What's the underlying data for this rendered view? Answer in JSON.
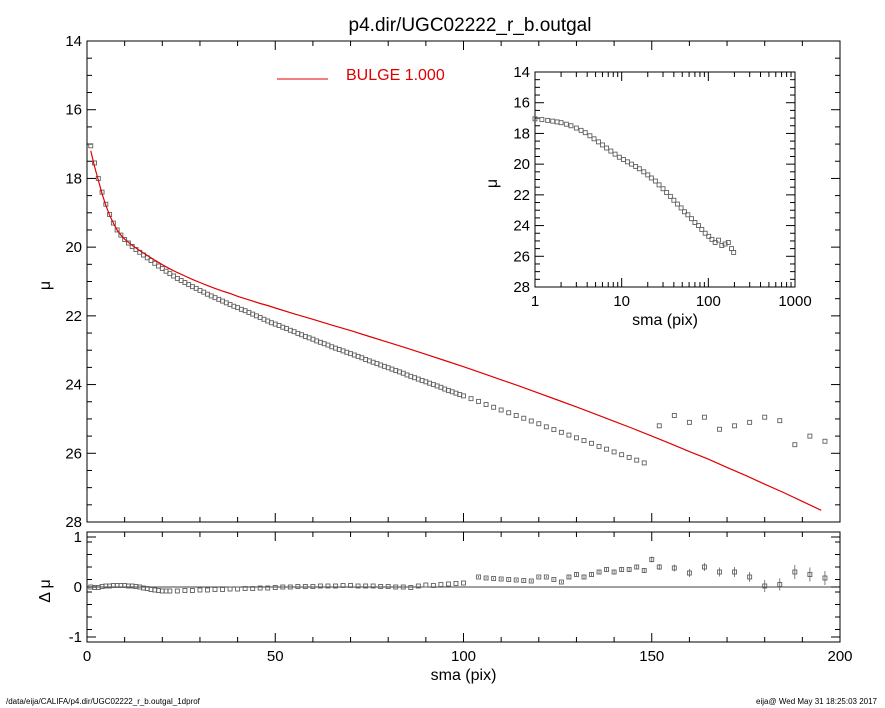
{
  "footer": {
    "left": "/data/eija/CALIFA/p4.dir/UGC02222_r_b.outgal_1dprof",
    "right": "eija@  Wed May 31 18:25:03 2017"
  },
  "colors": {
    "model": "#e00000",
    "data": "#606060",
    "axes": "#000000"
  },
  "chart_data": [
    {
      "id": "main",
      "type": "scatter",
      "title": "p4.dir/UGC02222_r_b.outgal",
      "xlabel": "",
      "ylabel": "μ",
      "xlim": [
        0,
        200
      ],
      "ylim": [
        28,
        14
      ],
      "y_inverted": true,
      "xticks": [
        0,
        50,
        100,
        150,
        200
      ],
      "yticks": [
        14,
        16,
        18,
        20,
        22,
        24,
        26,
        28
      ],
      "legend": {
        "label": "BULGE  1.000",
        "placement": "top-left"
      },
      "series": [
        {
          "name": "data",
          "style": "square-markers",
          "x": [
            1,
            2,
            3,
            4,
            5,
            6,
            7,
            8,
            9,
            10,
            11,
            12,
            13,
            14,
            15,
            16,
            17,
            18,
            19,
            20,
            21,
            22,
            23,
            24,
            25,
            26,
            27,
            28,
            29,
            30,
            31,
            32,
            33,
            34,
            35,
            36,
            37,
            38,
            39,
            40,
            41,
            42,
            43,
            44,
            45,
            46,
            47,
            48,
            49,
            50,
            51,
            52,
            53,
            54,
            55,
            56,
            57,
            58,
            59,
            60,
            61,
            62,
            63,
            64,
            65,
            66,
            67,
            68,
            69,
            70,
            71,
            72,
            73,
            74,
            75,
            76,
            77,
            78,
            79,
            80,
            81,
            82,
            83,
            84,
            85,
            86,
            87,
            88,
            89,
            90,
            91,
            92,
            93,
            94,
            95,
            96,
            97,
            98,
            99,
            100,
            102,
            104,
            106,
            108,
            110,
            112,
            114,
            116,
            118,
            120,
            122,
            124,
            126,
            128,
            130,
            132,
            134,
            136,
            138,
            140,
            142,
            144,
            146,
            148,
            152,
            156,
            160,
            164,
            168,
            172,
            176,
            180,
            184,
            188,
            192,
            196
          ],
          "y": [
            17.05,
            17.55,
            18.0,
            18.4,
            18.75,
            19.05,
            19.3,
            19.5,
            19.65,
            19.78,
            19.88,
            19.98,
            20.07,
            20.15,
            20.23,
            20.31,
            20.39,
            20.47,
            20.55,
            20.62,
            20.7,
            20.77,
            20.84,
            20.91,
            20.97,
            21.03,
            21.09,
            21.15,
            21.2,
            21.26,
            21.31,
            21.37,
            21.42,
            21.47,
            21.52,
            21.57,
            21.62,
            21.67,
            21.72,
            21.76,
            21.81,
            21.85,
            21.9,
            21.95,
            22.0,
            22.05,
            22.1,
            22.15,
            22.2,
            22.24,
            22.28,
            22.33,
            22.37,
            22.42,
            22.46,
            22.51,
            22.55,
            22.6,
            22.64,
            22.68,
            22.73,
            22.77,
            22.81,
            22.85,
            22.9,
            22.94,
            22.98,
            23.02,
            23.06,
            23.1,
            23.14,
            23.18,
            23.22,
            23.27,
            23.31,
            23.35,
            23.39,
            23.43,
            23.47,
            23.51,
            23.55,
            23.59,
            23.63,
            23.67,
            23.72,
            23.76,
            23.8,
            23.84,
            23.88,
            23.92,
            23.96,
            24.0,
            24.04,
            24.08,
            24.13,
            24.17,
            24.21,
            24.25,
            24.29,
            24.33,
            24.41,
            24.49,
            24.58,
            24.66,
            24.74,
            24.82,
            24.9,
            24.98,
            25.06,
            25.14,
            25.23,
            25.31,
            25.39,
            25.47,
            25.55,
            25.63,
            25.71,
            25.8,
            25.88,
            25.96,
            26.04,
            26.12,
            26.2,
            26.28,
            25.2,
            24.9,
            25.1,
            24.95,
            25.3,
            25.2,
            25.1,
            24.95,
            25.05,
            25.75,
            25.5,
            25.65
          ]
        },
        {
          "name": "BULGE  1.000",
          "style": "line",
          "x": [
            1,
            2,
            3,
            4,
            5,
            6,
            7,
            8,
            9,
            10,
            12,
            14,
            16,
            18,
            20,
            22,
            24,
            26,
            28,
            30,
            32,
            34,
            36,
            38,
            40,
            42,
            44,
            46,
            48,
            50,
            55,
            60,
            65,
            70,
            75,
            80,
            85,
            90,
            95,
            100,
            105,
            110,
            115,
            120,
            125,
            130,
            135,
            140,
            145,
            150,
            155,
            160,
            165,
            170,
            175,
            180,
            185,
            190,
            195
          ],
          "y": [
            17.2,
            17.65,
            18.05,
            18.45,
            18.78,
            19.07,
            19.3,
            19.5,
            19.65,
            19.77,
            19.95,
            20.1,
            20.24,
            20.38,
            20.51,
            20.63,
            20.74,
            20.84,
            20.94,
            21.03,
            21.12,
            21.2,
            21.28,
            21.35,
            21.43,
            21.5,
            21.57,
            21.64,
            21.7,
            21.77,
            21.94,
            22.1,
            22.27,
            22.43,
            22.6,
            22.77,
            22.94,
            23.12,
            23.3,
            23.48,
            23.67,
            23.86,
            24.05,
            24.25,
            24.45,
            24.65,
            24.86,
            25.07,
            25.28,
            25.5,
            25.72,
            25.95,
            26.17,
            26.41,
            26.65,
            26.9,
            27.14,
            27.4,
            27.66
          ]
        }
      ]
    },
    {
      "id": "residual",
      "type": "scatter",
      "xlabel": "sma (pix)",
      "ylabel": "Δ μ",
      "xlim": [
        0,
        200
      ],
      "ylim": [
        -1.1,
        1.1
      ],
      "xticks": [
        0,
        50,
        100,
        150,
        200
      ],
      "yticks": [
        1,
        0,
        -1
      ],
      "zero_line": true,
      "series": [
        {
          "name": "residual",
          "style": "square-markers-with-errorbars",
          "x": [
            1,
            2,
            3,
            4,
            5,
            6,
            7,
            8,
            9,
            10,
            11,
            12,
            13,
            14,
            15,
            16,
            17,
            18,
            19,
            20,
            21,
            22,
            24,
            26,
            28,
            30,
            32,
            34,
            36,
            38,
            40,
            42,
            44,
            46,
            48,
            50,
            52,
            54,
            56,
            58,
            60,
            62,
            64,
            66,
            68,
            70,
            72,
            74,
            76,
            78,
            80,
            82,
            84,
            86,
            88,
            90,
            92,
            94,
            96,
            98,
            100,
            104,
            106,
            108,
            110,
            112,
            114,
            116,
            118,
            120,
            122,
            124,
            126,
            128,
            130,
            132,
            134,
            136,
            138,
            140,
            142,
            144,
            146,
            148,
            150,
            152,
            156,
            160,
            164,
            168,
            172,
            176,
            180,
            184,
            188,
            192,
            196
          ],
          "y": [
            0.0,
            -0.01,
            -0.01,
            0.01,
            0.02,
            0.02,
            0.03,
            0.03,
            0.03,
            0.03,
            0.02,
            0.02,
            0.01,
            0.0,
            -0.02,
            -0.03,
            -0.05,
            -0.06,
            -0.07,
            -0.08,
            -0.08,
            -0.08,
            -0.08,
            -0.07,
            -0.07,
            -0.06,
            -0.06,
            -0.05,
            -0.05,
            -0.04,
            -0.04,
            -0.03,
            -0.03,
            -0.02,
            -0.02,
            -0.01,
            0.0,
            0.0,
            0.01,
            0.01,
            0.01,
            0.02,
            0.02,
            0.02,
            0.03,
            0.03,
            0.02,
            0.02,
            0.02,
            0.01,
            0.01,
            0.0,
            0.0,
            -0.01,
            0.02,
            0.04,
            0.03,
            0.05,
            0.06,
            0.07,
            0.08,
            0.2,
            0.18,
            0.17,
            0.16,
            0.15,
            0.14,
            0.13,
            0.12,
            0.2,
            0.2,
            0.15,
            0.1,
            0.2,
            0.25,
            0.2,
            0.25,
            0.3,
            0.35,
            0.3,
            0.35,
            0.35,
            0.4,
            0.33,
            0.55,
            0.4,
            0.38,
            0.28,
            0.4,
            0.3,
            0.3,
            0.2,
            0.02,
            0.05,
            0.3,
            0.25,
            0.18
          ],
          "err": [
            0,
            0,
            0,
            0,
            0,
            0,
            0,
            0,
            0,
            0,
            0,
            0,
            0,
            0,
            0,
            0,
            0,
            0,
            0,
            0,
            0,
            0,
            0,
            0,
            0,
            0,
            0,
            0,
            0,
            0,
            0,
            0,
            0,
            0,
            0,
            0,
            0,
            0,
            0,
            0,
            0,
            0,
            0,
            0,
            0,
            0,
            0,
            0,
            0,
            0,
            0,
            0,
            0,
            0,
            0,
            0,
            0,
            0,
            0,
            0,
            0,
            0.02,
            0.02,
            0.02,
            0.02,
            0.02,
            0.02,
            0.02,
            0.02,
            0.02,
            0.02,
            0.02,
            0.02,
            0.03,
            0.03,
            0.03,
            0.03,
            0.04,
            0.04,
            0.04,
            0.04,
            0.05,
            0.05,
            0.05,
            0.06,
            0.06,
            0.07,
            0.08,
            0.08,
            0.09,
            0.1,
            0.1,
            0.12,
            0.12,
            0.14,
            0.14,
            0.14
          ]
        }
      ]
    },
    {
      "id": "inset",
      "type": "scatter",
      "xlabel": "sma (pix)",
      "ylabel": "μ",
      "xscale": "log",
      "xlim": [
        1,
        1000
      ],
      "ylim": [
        28,
        14
      ],
      "y_inverted": true,
      "xticks": [
        1,
        10,
        100,
        1000
      ],
      "yticks": [
        14,
        16,
        18,
        20,
        22,
        24,
        26,
        28
      ],
      "series": [
        {
          "name": "data",
          "style": "square-markers",
          "x": [
            1,
            1.2,
            1.4,
            1.6,
            1.8,
            2,
            2.3,
            2.6,
            3,
            3.4,
            3.8,
            4.3,
            4.8,
            5.4,
            6,
            6.7,
            7.5,
            8.4,
            9.4,
            10.5,
            11.7,
            13,
            14.5,
            16,
            18,
            20,
            22,
            24.5,
            27,
            30,
            33,
            36.5,
            40,
            44,
            48.5,
            53,
            58,
            64,
            70,
            77,
            84,
            92,
            101,
            110,
            120,
            131,
            143,
            156,
            170,
            185,
            196
          ],
          "y": [
            17.05,
            17.1,
            17.15,
            17.2,
            17.25,
            17.3,
            17.4,
            17.5,
            17.65,
            17.8,
            17.95,
            18.15,
            18.35,
            18.55,
            18.75,
            18.95,
            19.15,
            19.35,
            19.55,
            19.7,
            19.85,
            20.0,
            20.15,
            20.3,
            20.5,
            20.7,
            20.9,
            21.1,
            21.35,
            21.6,
            21.85,
            22.1,
            22.35,
            22.6,
            22.85,
            23.1,
            23.3,
            23.55,
            23.8,
            24.0,
            24.25,
            24.5,
            24.7,
            24.9,
            25.1,
            24.95,
            25.3,
            25.2,
            25.1,
            25.5,
            25.75
          ]
        }
      ]
    }
  ]
}
